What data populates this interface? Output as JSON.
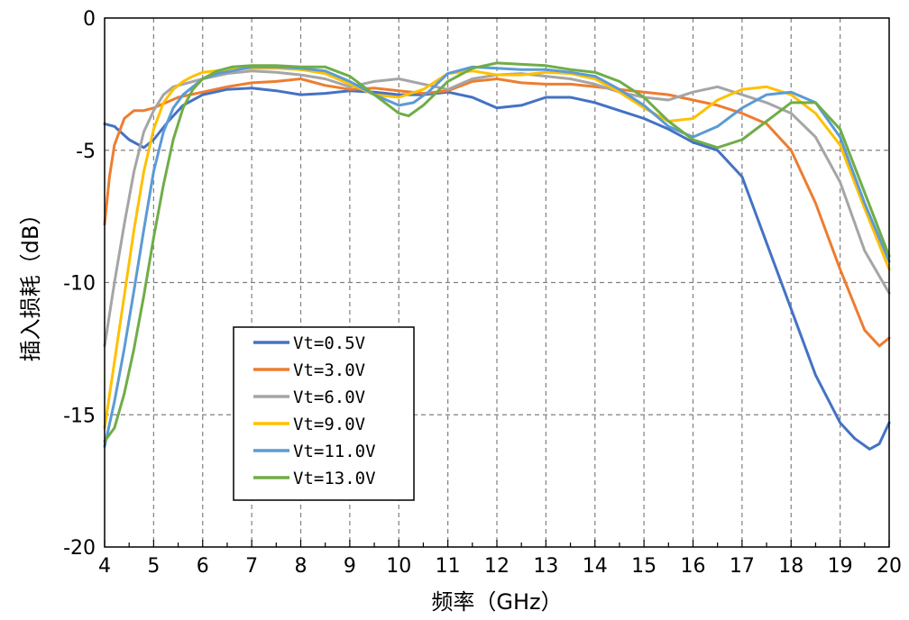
{
  "chart_data": {
    "type": "line",
    "title": "",
    "xlabel": "频率（GHz）",
    "ylabel": "插入损耗（dB）",
    "xlim": [
      4,
      20
    ],
    "ylim": [
      -20,
      0
    ],
    "xticks": [
      "4",
      "5",
      "6",
      "7",
      "8",
      "9",
      "10",
      "11",
      "12",
      "13",
      "14",
      "15",
      "16",
      "17",
      "18",
      "19",
      "20"
    ],
    "yticks": [
      "0",
      "-5",
      "-10",
      "-15",
      "-20"
    ],
    "grid": true,
    "legend_position": "lower-left",
    "series": [
      {
        "name": "Vt=0.5V",
        "color": "#4472C4",
        "x": [
          4.0,
          4.2,
          4.5,
          4.8,
          5.0,
          5.3,
          5.6,
          6.0,
          6.5,
          7.0,
          7.5,
          8.0,
          8.5,
          9.0,
          9.5,
          10.0,
          10.5,
          11.0,
          11.5,
          12.0,
          12.5,
          13.0,
          13.5,
          14.0,
          14.5,
          15.0,
          15.5,
          16.0,
          16.5,
          17.0,
          17.3,
          17.6,
          18.0,
          18.5,
          19.0,
          19.3,
          19.6,
          19.8,
          20.0
        ],
        "y": [
          -4.0,
          -4.1,
          -4.6,
          -4.9,
          -4.6,
          -3.9,
          -3.3,
          -2.9,
          -2.7,
          -2.65,
          -2.75,
          -2.9,
          -2.85,
          -2.75,
          -2.8,
          -2.9,
          -2.9,
          -2.8,
          -3.0,
          -3.4,
          -3.3,
          -3.0,
          -3.0,
          -3.2,
          -3.5,
          -3.8,
          -4.2,
          -4.7,
          -5.0,
          -6.0,
          -7.5,
          -9.0,
          -11.0,
          -13.5,
          -15.3,
          -15.9,
          -16.3,
          -16.1,
          -15.3
        ]
      },
      {
        "name": "Vt=3.0V",
        "color": "#ED7D31",
        "x": [
          4.0,
          4.1,
          4.2,
          4.4,
          4.6,
          4.8,
          5.0,
          5.5,
          6.0,
          6.5,
          7.0,
          7.5,
          8.0,
          8.5,
          9.0,
          9.5,
          10.0,
          10.5,
          11.0,
          11.5,
          12.0,
          12.5,
          13.0,
          13.5,
          14.0,
          14.5,
          15.0,
          15.5,
          16.0,
          16.5,
          17.0,
          17.5,
          18.0,
          18.5,
          19.0,
          19.5,
          19.8,
          20.0
        ],
        "y": [
          -7.8,
          -6.0,
          -4.8,
          -3.8,
          -3.5,
          -3.5,
          -3.4,
          -3.0,
          -2.8,
          -2.6,
          -2.45,
          -2.4,
          -2.3,
          -2.55,
          -2.7,
          -2.65,
          -2.75,
          -2.85,
          -2.75,
          -2.4,
          -2.3,
          -2.45,
          -2.5,
          -2.5,
          -2.6,
          -2.7,
          -2.8,
          -2.9,
          -3.1,
          -3.3,
          -3.6,
          -4.0,
          -5.0,
          -7.0,
          -9.5,
          -11.8,
          -12.4,
          -12.1
        ]
      },
      {
        "name": "Vt=6.0V",
        "color": "#A5A5A5",
        "x": [
          4.0,
          4.2,
          4.4,
          4.6,
          4.8,
          5.0,
          5.2,
          5.4,
          5.6,
          6.0,
          6.5,
          7.0,
          7.5,
          8.0,
          8.5,
          9.0,
          9.5,
          10.0,
          10.5,
          11.0,
          11.5,
          12.0,
          12.5,
          13.0,
          13.5,
          14.0,
          14.5,
          15.0,
          15.5,
          16.0,
          16.5,
          17.0,
          17.5,
          18.0,
          18.5,
          19.0,
          19.5,
          20.0
        ],
        "y": [
          -12.4,
          -10.0,
          -7.8,
          -5.8,
          -4.3,
          -3.5,
          -2.9,
          -2.6,
          -2.5,
          -2.3,
          -2.1,
          -2.0,
          -2.05,
          -2.15,
          -2.3,
          -2.6,
          -2.4,
          -2.3,
          -2.5,
          -2.7,
          -2.3,
          -2.15,
          -2.1,
          -2.2,
          -2.3,
          -2.5,
          -2.8,
          -3.0,
          -3.1,
          -2.8,
          -2.6,
          -2.9,
          -3.2,
          -3.6,
          -4.5,
          -6.2,
          -8.8,
          -10.4
        ]
      },
      {
        "name": "Vt=9.0V",
        "color": "#FFC000",
        "x": [
          4.0,
          4.2,
          4.4,
          4.6,
          4.8,
          5.0,
          5.2,
          5.4,
          5.6,
          5.8,
          6.0,
          6.5,
          7.0,
          7.5,
          8.0,
          8.5,
          9.0,
          9.5,
          10.0,
          10.5,
          11.0,
          11.5,
          12.0,
          12.5,
          13.0,
          13.5,
          14.0,
          14.5,
          15.0,
          15.5,
          16.0,
          16.5,
          17.0,
          17.5,
          18.0,
          18.5,
          19.0,
          19.5,
          20.0
        ],
        "y": [
          -15.5,
          -13.0,
          -10.5,
          -8.0,
          -5.8,
          -4.2,
          -3.2,
          -2.7,
          -2.4,
          -2.2,
          -2.05,
          -1.95,
          -1.9,
          -1.9,
          -1.95,
          -2.1,
          -2.5,
          -2.9,
          -3.0,
          -2.7,
          -2.1,
          -2.0,
          -2.15,
          -2.15,
          -2.05,
          -2.1,
          -2.3,
          -2.8,
          -3.4,
          -3.9,
          -3.8,
          -3.1,
          -2.7,
          -2.6,
          -2.9,
          -3.6,
          -4.8,
          -7.2,
          -9.5
        ]
      },
      {
        "name": "Vt=11.0V",
        "color": "#5B9BD5",
        "x": [
          4.0,
          4.2,
          4.4,
          4.6,
          4.8,
          5.0,
          5.2,
          5.4,
          5.6,
          5.8,
          6.0,
          6.3,
          6.6,
          7.0,
          7.5,
          8.0,
          8.5,
          9.0,
          9.5,
          10.0,
          10.3,
          10.6,
          11.0,
          11.5,
          12.0,
          12.5,
          13.0,
          13.5,
          14.0,
          14.5,
          15.0,
          15.5,
          16.0,
          16.5,
          17.0,
          17.5,
          18.0,
          18.5,
          19.0,
          19.5,
          20.0
        ],
        "y": [
          -16.2,
          -14.5,
          -12.5,
          -10.3,
          -8.0,
          -5.8,
          -4.3,
          -3.4,
          -2.9,
          -2.6,
          -2.3,
          -2.1,
          -2.0,
          -1.85,
          -1.85,
          -1.9,
          -2.0,
          -2.4,
          -2.9,
          -3.3,
          -3.2,
          -2.8,
          -2.1,
          -1.85,
          -1.9,
          -1.95,
          -1.95,
          -2.05,
          -2.2,
          -2.7,
          -3.3,
          -4.1,
          -4.5,
          -4.1,
          -3.4,
          -2.9,
          -2.8,
          -3.2,
          -4.5,
          -7.0,
          -9.2
        ]
      },
      {
        "name": "Vt=13.0V",
        "color": "#70AD47",
        "x": [
          4.0,
          4.2,
          4.4,
          4.6,
          4.8,
          5.0,
          5.2,
          5.4,
          5.6,
          5.8,
          6.0,
          6.3,
          6.6,
          7.0,
          7.5,
          8.0,
          8.5,
          9.0,
          9.5,
          10.0,
          10.2,
          10.5,
          11.0,
          11.5,
          12.0,
          12.5,
          13.0,
          13.5,
          14.0,
          14.5,
          15.0,
          15.5,
          16.0,
          16.5,
          17.0,
          17.5,
          18.0,
          18.5,
          19.0,
          19.5,
          20.0
        ],
        "y": [
          -16.0,
          -15.5,
          -14.2,
          -12.5,
          -10.5,
          -8.3,
          -6.3,
          -4.6,
          -3.4,
          -2.7,
          -2.3,
          -2.0,
          -1.85,
          -1.8,
          -1.8,
          -1.85,
          -1.85,
          -2.2,
          -2.9,
          -3.6,
          -3.7,
          -3.3,
          -2.4,
          -1.9,
          -1.7,
          -1.75,
          -1.8,
          -1.95,
          -2.05,
          -2.4,
          -3.0,
          -3.9,
          -4.6,
          -4.9,
          -4.6,
          -3.9,
          -3.2,
          -3.2,
          -4.2,
          -6.6,
          -9.0
        ]
      }
    ]
  }
}
